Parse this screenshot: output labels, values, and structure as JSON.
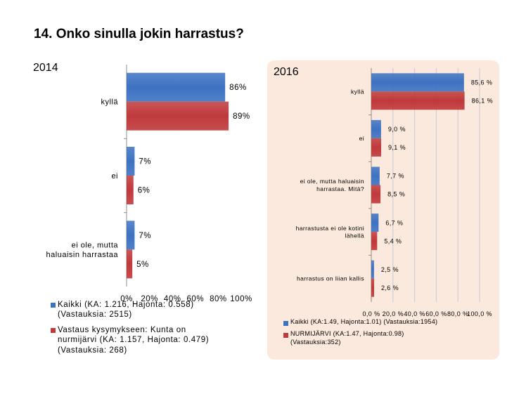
{
  "title": "14. Onko sinulla jokin harrastus?",
  "colors": {
    "kaikki": "#3d72c2",
    "nurmijarvi": "#c0393b",
    "panel_bg": "#fae9dc",
    "axis": "#8c8c8c"
  },
  "chart_data": [
    {
      "type": "bar",
      "orientation": "horizontal",
      "title": "2014",
      "categories": [
        "kyllä",
        "ei",
        "ei ole, mutta haluaisin harrastaa"
      ],
      "category_labels": [
        [
          "kyllä"
        ],
        [
          "ei"
        ],
        [
          "ei ole, mutta",
          "haluaisin harrastaa"
        ]
      ],
      "series": [
        {
          "name": "Kaikki (KA: 1.216, Hajonta: 0.558) (Vastauksia: 2515)",
          "legend_lines": [
            "Kaikki (KA: 1.216, Hajonta: 0.558)",
            "(Vastauksia: 2515)"
          ],
          "values": [
            86,
            7,
            7
          ],
          "labels": [
            "86%",
            "7%",
            "7%"
          ]
        },
        {
          "name": "Vastaus kysymykseen: Kunta on nurmijärvi (KA: 1.157, Hajonta: 0.479) (Vastauksia: 268)",
          "legend_lines": [
            "Vastaus kysymykseen: Kunta on",
            "nurmijärvi (KA: 1.157, Hajonta: 0.479)",
            "(Vastauksia: 268)"
          ],
          "values": [
            89,
            6,
            5
          ],
          "labels": [
            "89%",
            "6%",
            "5%"
          ]
        }
      ],
      "xlim": [
        0,
        100
      ],
      "xticks": [
        "0%",
        "20%",
        "40%",
        "60%",
        "80%",
        "100%"
      ],
      "grid": false,
      "legend_position": "bottom"
    },
    {
      "type": "bar",
      "orientation": "horizontal",
      "title": "2016",
      "categories": [
        "kyllä",
        "ei",
        "ei ole, mutta haluaisin harrastaa. Mitä?",
        "harrastusta ei ole kotini lähellä",
        "harrastus on liian kallis"
      ],
      "category_labels": [
        [
          "kyllä"
        ],
        [
          "ei"
        ],
        [
          "ei ole, mutta haluaisin",
          "harrastaa. Mitä?"
        ],
        [
          "harrastusta ei ole kotini",
          "lähellä"
        ],
        [
          "harrastus on liian kallis"
        ]
      ],
      "series": [
        {
          "name": "Kaikki (KA:1.49, Hajonta:1.01) (Vastauksia:1954)",
          "legend_lines": [
            "Kaikki (KA:1.49, Hajonta:1.01) (Vastauksia:1954)"
          ],
          "values": [
            85.6,
            9.0,
            7.7,
            6.7,
            2.5
          ],
          "labels": [
            "85,6 %",
            "9,0 %",
            "7,7 %",
            "6,7 %",
            "2,5 %"
          ]
        },
        {
          "name": "NURMIJÄRVI (KA:1.47, Hajonta:0.98) (Vastauksia:352)",
          "legend_lines": [
            "NURMIJÄRVI (KA:1.47, Hajonta:0.98)",
            "(Vastauksia:352)"
          ],
          "values": [
            86.1,
            9.1,
            8.5,
            5.4,
            2.6
          ],
          "labels": [
            "86,1 %",
            "9,1 %",
            "8,5 %",
            "5,4 %",
            "2,6 %"
          ]
        }
      ],
      "xlim": [
        0,
        100
      ],
      "xticks": [
        "0,0 %",
        "20,0 %",
        "40,0 %",
        "60,0 %",
        "80,0 %",
        "100,0 %"
      ],
      "grid": true,
      "legend_position": "bottom"
    }
  ]
}
